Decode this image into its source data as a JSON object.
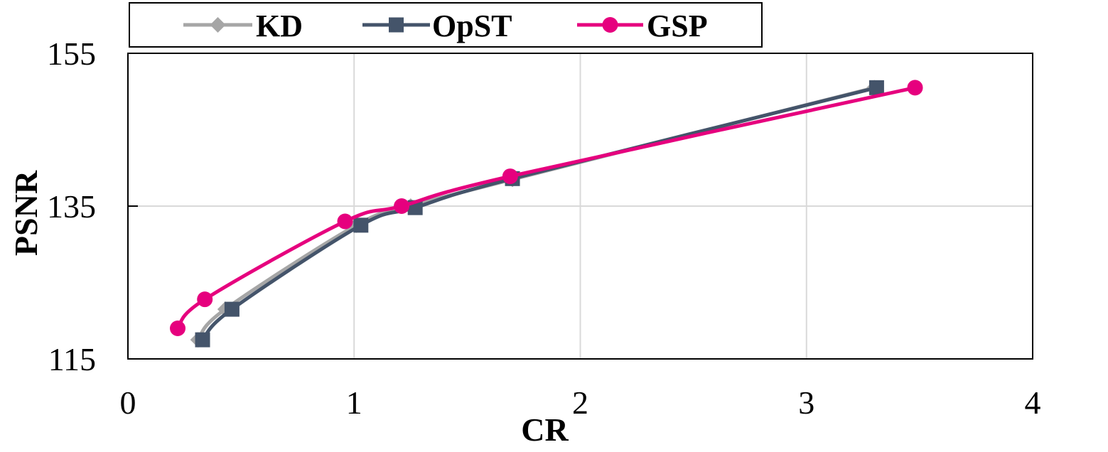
{
  "chart_data": {
    "type": "line",
    "title": "",
    "xlabel": "CR",
    "ylabel": "PSNR",
    "xlim": [
      0,
      4
    ],
    "ylim": [
      115,
      155
    ],
    "xticks": [
      0,
      1,
      2,
      3,
      4
    ],
    "yticks": [
      115,
      135,
      155
    ],
    "xtick_labels": [
      "0",
      "1",
      "2",
      "3",
      "4"
    ],
    "ytick_labels": [
      "115",
      "135",
      "155"
    ],
    "grid": true,
    "legend_position": "top",
    "series": [
      {
        "name": "KD",
        "color": "#a6a6a6",
        "marker": "diamond",
        "points": [
          [
            0.31,
            117.5
          ],
          [
            0.43,
            121.5
          ],
          [
            1.01,
            132.5
          ],
          [
            1.25,
            135.0
          ],
          [
            1.7,
            138.5
          ],
          [
            3.3,
            150.5
          ]
        ]
      },
      {
        "name": "OpST",
        "color": "#44546a",
        "marker": "square",
        "points": [
          [
            0.33,
            117.5
          ],
          [
            0.46,
            121.5
          ],
          [
            1.03,
            132.5
          ],
          [
            1.27,
            134.8
          ],
          [
            1.7,
            138.6
          ],
          [
            3.31,
            150.5
          ]
        ]
      },
      {
        "name": "GSP",
        "color": "#e6007e",
        "marker": "circle",
        "points": [
          [
            0.22,
            119.0
          ],
          [
            0.34,
            122.8
          ],
          [
            0.96,
            133.0
          ],
          [
            1.21,
            135.0
          ],
          [
            1.69,
            138.9
          ],
          [
            3.48,
            150.5
          ]
        ]
      }
    ]
  }
}
